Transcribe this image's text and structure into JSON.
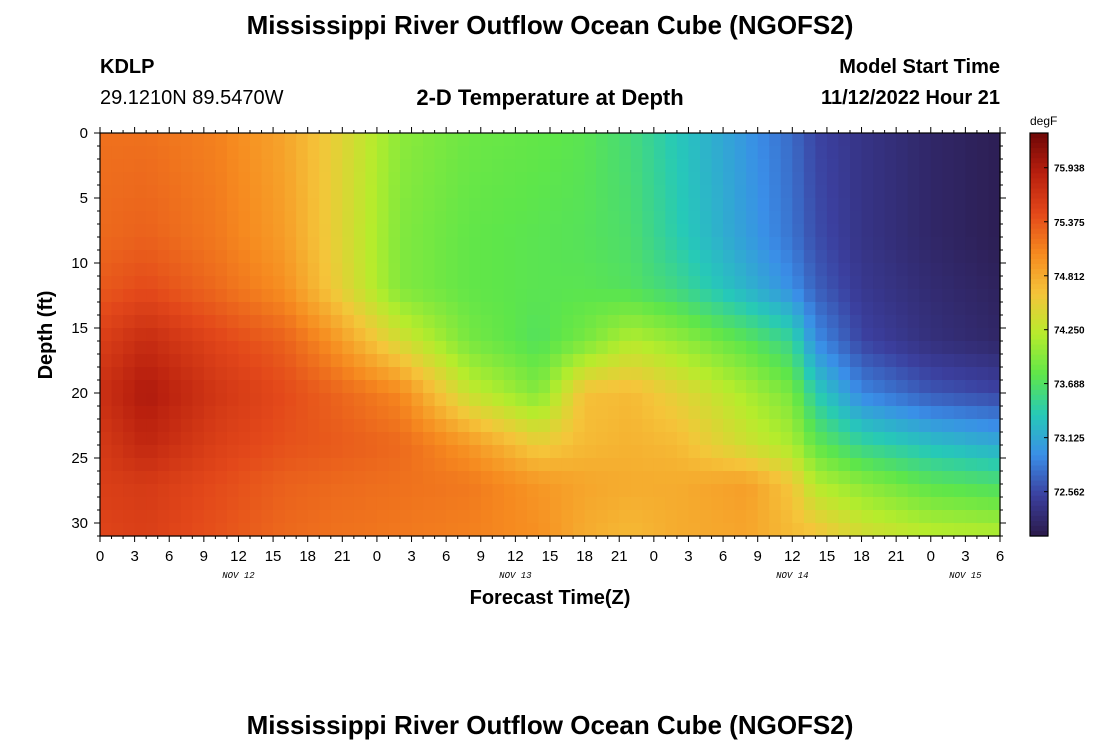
{
  "header": {
    "title": "Mississippi River Outflow Ocean Cube (NGOFS2)",
    "station": "KDLP",
    "coords": "29.1210N  89.5470W",
    "subtitle": "2-D Temperature at Depth",
    "model_start_label": "Model Start Time",
    "model_start_value": "11/12/2022 Hour 21"
  },
  "footer": {
    "title": "Mississippi River Outflow Ocean Cube (NGOFS2)"
  },
  "chart_data": {
    "type": "heatmap",
    "title": "2-D Temperature at Depth",
    "xlabel": "Forecast Time(Z)",
    "ylabel": "Depth (ft)",
    "x_tick_labels": [
      "0",
      "3",
      "6",
      "9",
      "12",
      "15",
      "18",
      "21",
      "0",
      "3",
      "6",
      "9",
      "12",
      "15",
      "18",
      "21",
      "0",
      "3",
      "6",
      "9",
      "12",
      "15",
      "18",
      "21",
      "0",
      "3",
      "6"
    ],
    "x_hours_range": [
      0,
      78
    ],
    "date_labels": [
      {
        "label": "NOV 12",
        "hour": 12
      },
      {
        "label": "NOV 13",
        "hour": 36
      },
      {
        "label": "NOV 14",
        "hour": 60
      },
      {
        "label": "NOV 15",
        "hour": 75
      }
    ],
    "y_ticks": [
      "0",
      "5",
      "10",
      "15",
      "20",
      "25",
      "30"
    ],
    "y_range_ft": [
      0,
      31
    ],
    "colorbar": {
      "unit": "degF",
      "tick_labels": [
        "75.938",
        "75.375",
        "74.812",
        "74.250",
        "73.688",
        "73.125",
        "72.562"
      ],
      "range": [
        72.1,
        76.3
      ],
      "colors": [
        "#2b1a4a",
        "#3b3f9e",
        "#3a8ee8",
        "#26c9b8",
        "#5ee64a",
        "#b6ec2c",
        "#f5c53a",
        "#f68a1f",
        "#e3481a",
        "#b81f0e",
        "#6e0707"
      ]
    },
    "temperature_profiles": {
      "depth_ft": [
        0,
        8,
        12,
        16,
        20,
        24,
        27,
        31
      ],
      "columns": [
        {
          "hour": 0,
          "values": [
            75.2,
            75.25,
            75.35,
            75.55,
            75.7,
            75.6,
            75.55,
            75.5
          ]
        },
        {
          "hour": 4,
          "values": [
            75.2,
            75.3,
            75.45,
            75.75,
            75.95,
            75.8,
            75.6,
            75.55
          ]
        },
        {
          "hour": 10,
          "values": [
            75.1,
            75.15,
            75.25,
            75.5,
            75.65,
            75.55,
            75.45,
            75.4
          ]
        },
        {
          "hour": 16,
          "values": [
            74.85,
            74.9,
            75.0,
            75.3,
            75.45,
            75.4,
            75.3,
            75.25
          ]
        },
        {
          "hour": 20,
          "values": [
            74.55,
            74.55,
            74.6,
            75.0,
            75.3,
            75.35,
            75.25,
            75.2
          ]
        },
        {
          "hour": 26,
          "values": [
            74.0,
            73.95,
            73.95,
            74.4,
            75.05,
            75.25,
            75.2,
            75.15
          ]
        },
        {
          "hour": 32,
          "values": [
            73.85,
            73.8,
            73.8,
            73.9,
            74.3,
            74.95,
            75.15,
            75.1
          ]
        },
        {
          "hour": 38,
          "values": [
            73.8,
            73.75,
            73.75,
            73.7,
            73.95,
            74.55,
            74.95,
            75.0
          ]
        },
        {
          "hour": 42,
          "values": [
            73.75,
            73.72,
            73.75,
            73.9,
            74.65,
            74.7,
            74.85,
            74.8
          ]
        },
        {
          "hour": 46,
          "values": [
            73.6,
            73.65,
            73.7,
            74.2,
            74.7,
            74.75,
            74.8,
            74.7
          ]
        },
        {
          "hour": 50,
          "values": [
            73.35,
            73.4,
            73.55,
            74.05,
            74.5,
            74.7,
            74.8,
            74.8
          ]
        },
        {
          "hour": 56,
          "values": [
            73.0,
            73.05,
            73.2,
            73.75,
            74.15,
            74.35,
            74.9,
            74.85
          ]
        },
        {
          "hour": 60,
          "values": [
            72.75,
            72.8,
            72.95,
            73.5,
            73.9,
            74.15,
            74.6,
            74.7
          ]
        },
        {
          "hour": 62,
          "values": [
            72.55,
            72.6,
            72.7,
            72.95,
            73.4,
            73.8,
            74.2,
            74.65
          ]
        },
        {
          "hour": 66,
          "values": [
            72.4,
            72.4,
            72.45,
            72.55,
            72.9,
            73.5,
            74.0,
            74.4
          ]
        },
        {
          "hour": 72,
          "values": [
            72.25,
            72.25,
            72.3,
            72.35,
            72.65,
            73.3,
            73.75,
            74.25
          ]
        },
        {
          "hour": 78,
          "values": [
            72.15,
            72.15,
            72.2,
            72.25,
            72.55,
            73.15,
            73.65,
            74.2
          ]
        }
      ]
    }
  }
}
